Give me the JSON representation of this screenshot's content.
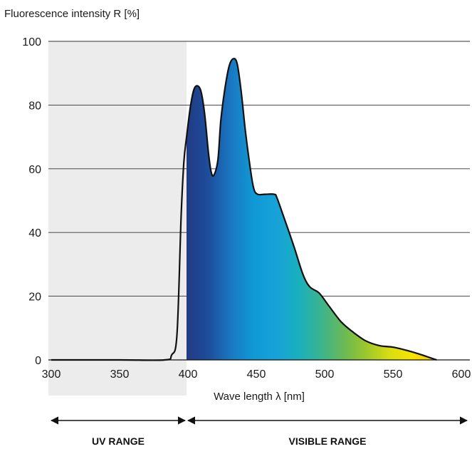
{
  "chart_data": {
    "type": "area",
    "ylabel": "Fluorescence intensity R [%]",
    "xlabel": "Wave length λ [nm]",
    "xlim": [
      300,
      600
    ],
    "ylim": [
      0,
      100
    ],
    "x_ticks": [
      "300",
      "350",
      "400",
      "450",
      "500",
      "550",
      "600"
    ],
    "y_ticks": [
      "0",
      "20",
      "40",
      "60",
      "80",
      "100"
    ],
    "grid": "horizontal",
    "shaded_region": {
      "label": "UV RANGE",
      "from": 300,
      "to": 400
    },
    "ranges": [
      {
        "label": "UV RANGE",
        "from": 300,
        "to": 400
      },
      {
        "label": "VISIBLE RANGE",
        "from": 400,
        "to": 610
      }
    ],
    "series": [
      {
        "points": [
          [
            300,
            0
          ],
          [
            350,
            0
          ],
          [
            383,
            0
          ],
          [
            388,
            1.5
          ],
          [
            392,
            8
          ],
          [
            395,
            45
          ],
          [
            397,
            62
          ],
          [
            399,
            70
          ],
          [
            402,
            80
          ],
          [
            405,
            85.5
          ],
          [
            409,
            85
          ],
          [
            412,
            78
          ],
          [
            415,
            65
          ],
          [
            417,
            59
          ],
          [
            419,
            58
          ],
          [
            422,
            63
          ],
          [
            424,
            75
          ],
          [
            427,
            85
          ],
          [
            430,
            92
          ],
          [
            433,
            94.5
          ],
          [
            436,
            93
          ],
          [
            439,
            84
          ],
          [
            442,
            72
          ],
          [
            445,
            62
          ],
          [
            448,
            54
          ],
          [
            451,
            52
          ],
          [
            456,
            52
          ],
          [
            463,
            52
          ],
          [
            465,
            51
          ],
          [
            470,
            45
          ],
          [
            478,
            35
          ],
          [
            484,
            27
          ],
          [
            489,
            23
          ],
          [
            496,
            21
          ],
          [
            503,
            17
          ],
          [
            512,
            12
          ],
          [
            520,
            9
          ],
          [
            530,
            6
          ],
          [
            540,
            4.5
          ],
          [
            550,
            4
          ],
          [
            560,
            3
          ],
          [
            568,
            2
          ],
          [
            575,
            1
          ],
          [
            582,
            0
          ]
        ]
      }
    ],
    "gradient_colors": [
      "#223a84",
      "#1d4e9c",
      "#1979c2",
      "#0f9ad6",
      "#17a2d8",
      "#19b0bd",
      "#3cb48d",
      "#6ab955",
      "#9cc72c",
      "#d7dd14",
      "#f7e400",
      "#f6c800"
    ]
  }
}
